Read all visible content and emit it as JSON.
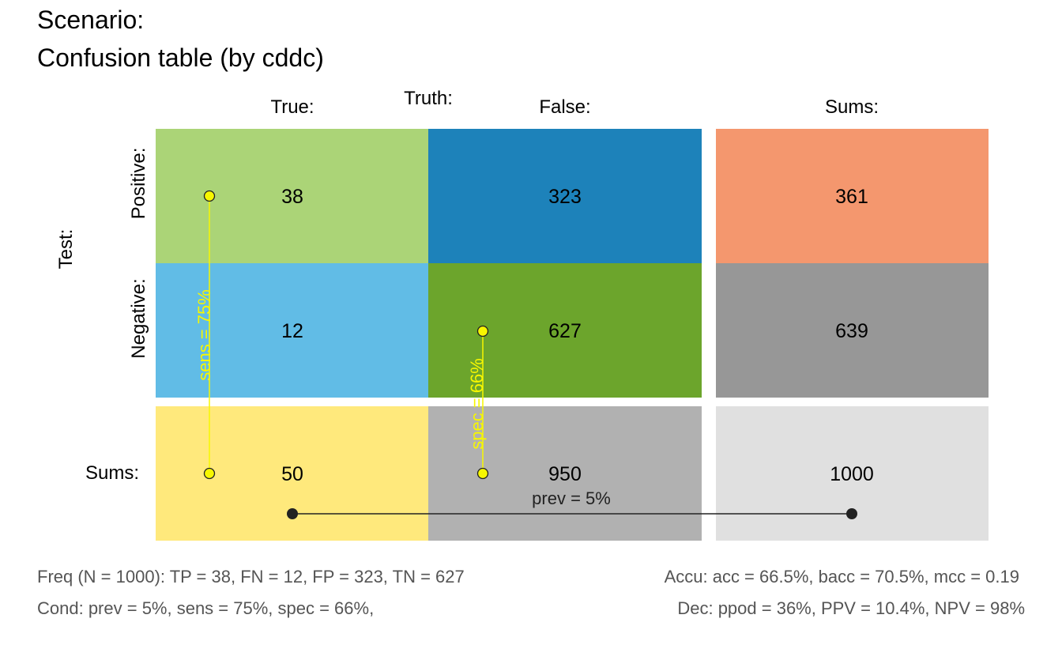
{
  "title": {
    "line1": "Scenario:",
    "line2": "Confusion table (by cddc)"
  },
  "headers": {
    "truth": "Truth:",
    "col_true": "True:",
    "col_false": "False:",
    "col_sums": "Sums:",
    "test": "Test:",
    "row_positive": "Positive:",
    "row_negative": "Negative:",
    "row_sums": "Sums:"
  },
  "cells": {
    "tp": "38",
    "fp": "323",
    "fn": "12",
    "tn": "627",
    "dec_pos": "361",
    "dec_neg": "639",
    "cond_true": "50",
    "cond_false": "950",
    "n": "1000"
  },
  "colors": {
    "tp": "#ABD477",
    "fp": "#1D82BA",
    "fn": "#61BCE6",
    "tn": "#6CA52C",
    "dec_pos": "#F4976E",
    "dec_neg": "#979797",
    "cond_true": "#FFE97C",
    "cond_false": "#B1B1B1",
    "n": "#E0E0E0",
    "metric_line": "#F7F700",
    "prev_line": "#222222"
  },
  "overlays": {
    "sens": "sens = 75%",
    "spec": "spec = 66%",
    "prev": "prev = 5%"
  },
  "footer": {
    "freq": "Freq (N = 1000):  TP = 38, FN = 12, FP = 323, TN = 627",
    "accu": "Accu:  acc = 66.5%, bacc = 70.5%, mcc = 0.19",
    "cond": "Cond:  prev = 5%, sens = 75%, spec = 66%,",
    "dec": "Dec:  ppod = 36%, PPV = 10.4%, NPV = 98%"
  }
}
